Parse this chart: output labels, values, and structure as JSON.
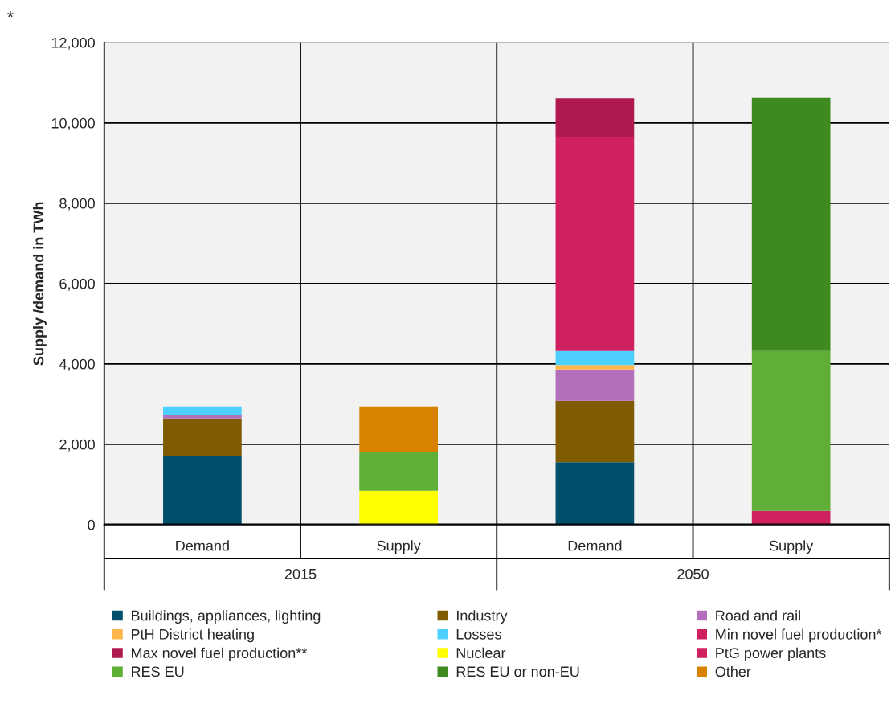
{
  "chart_data": {
    "type": "bar",
    "stacked": true,
    "ylabel": "Supply /demand in TWh",
    "categories": [
      "Demand",
      "Supply",
      "Demand",
      "Supply"
    ],
    "series": [
      {
        "name": "Buildings, appliances, lighting",
        "color": "#004f6b",
        "values": [
          1700,
          null,
          1550,
          null
        ]
      },
      {
        "name": "Industry",
        "color": "#7f5c00",
        "values": [
          940,
          null,
          1530,
          null
        ]
      },
      {
        "name": "Road and rail",
        "color": "#b36fba",
        "values": [
          80,
          null,
          780,
          null
        ]
      },
      {
        "name": "PtH District heating",
        "color": "#ffb74d",
        "values": [
          null,
          null,
          110,
          null
        ]
      },
      {
        "name": "Losses",
        "color": "#4dcfff",
        "values": [
          220,
          null,
          350,
          null
        ]
      },
      {
        "name": "Min novel fuel production*",
        "color": "#cf2160",
        "values": [
          null,
          null,
          5320,
          null
        ]
      },
      {
        "name": "Max novel fuel production**",
        "color": "#b01850",
        "values": [
          null,
          null,
          970,
          null
        ]
      },
      {
        "name": "Nuclear",
        "color": "#ffff00",
        "values": [
          null,
          840,
          null,
          null
        ]
      },
      {
        "name": "PtG power plants",
        "color": "#cf2160",
        "values": [
          null,
          null,
          null,
          340
        ]
      },
      {
        "name": "RES EU",
        "color": "#5fae37",
        "values": [
          null,
          960,
          null,
          3980
        ]
      },
      {
        "name": "RES EU or non-EU",
        "color": "#3f8a1e",
        "values": [
          null,
          null,
          null,
          6300
        ]
      },
      {
        "name": "Other",
        "color": "#d98200",
        "values": [
          null,
          1140,
          null,
          null
        ]
      }
    ],
    "ylim": [
      0,
      12000
    ],
    "yticks": [
      {
        "value": 0,
        "label": "0"
      },
      {
        "value": 2000,
        "label": "2,000"
      },
      {
        "value": 4000,
        "label": "4,000"
      },
      {
        "value": 6000,
        "label": "6,000"
      },
      {
        "value": 8000,
        "label": "8,000"
      },
      {
        "value": 10000,
        "label": "10,000"
      },
      {
        "value": 12000,
        "label": "12,000"
      }
    ],
    "grid": true,
    "legend": "bottom",
    "annotations": [
      "*",
      "2015",
      "2050"
    ]
  }
}
